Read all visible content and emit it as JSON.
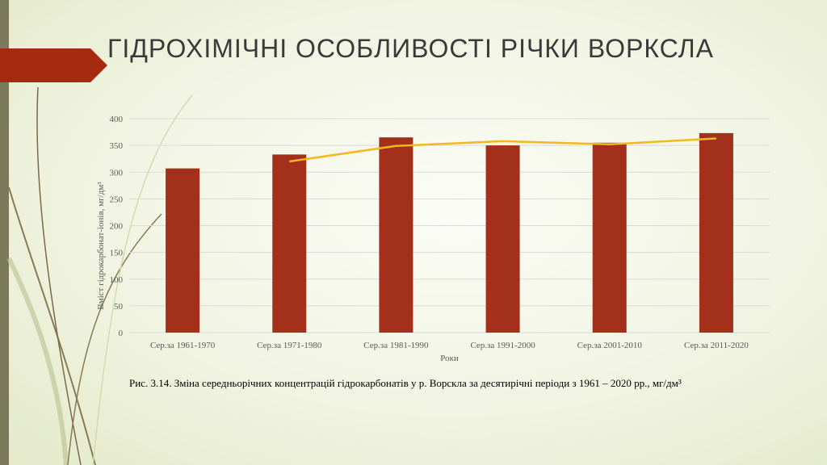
{
  "slide": {
    "title": "ГІДРОХІМІЧНІ ОСОБЛИВОСТІ РІЧКИ ВОРКСЛА",
    "caption": "Рис. 3.14. Зміна середньорічних концентрацій гідрокарбонатів у р. Ворскла за десятирічні періоди з 1961 – 2020 рр., мг/дм³"
  },
  "colors": {
    "accent": "#a52a10",
    "bar": "#a3301a",
    "trend": "#f2b81c",
    "strip": "#7a7a5a",
    "grid": "#d9d9d9",
    "decor_line": "#7a6a4a"
  },
  "chart_data": {
    "type": "bar",
    "categories": [
      "Сер.за 1961-1970",
      "Сер.за 1971-1980",
      "Сер.за 1981-1990",
      "Сер.за 1991-2000",
      "Сер.за 2001-2010",
      "Сер.за 2011-2020"
    ],
    "values": [
      307,
      333,
      365,
      350,
      355,
      373
    ],
    "trendline": [
      null,
      320,
      349,
      358,
      352,
      363
    ],
    "xlabel": "Роки",
    "ylabel": "Вміст гідрокарбонат-іонів, мг/дм³",
    "ylim": [
      0,
      400
    ],
    "yticks": [
      0,
      50,
      100,
      150,
      200,
      250,
      300,
      350,
      400
    ],
    "grid": true,
    "legend": "none"
  }
}
